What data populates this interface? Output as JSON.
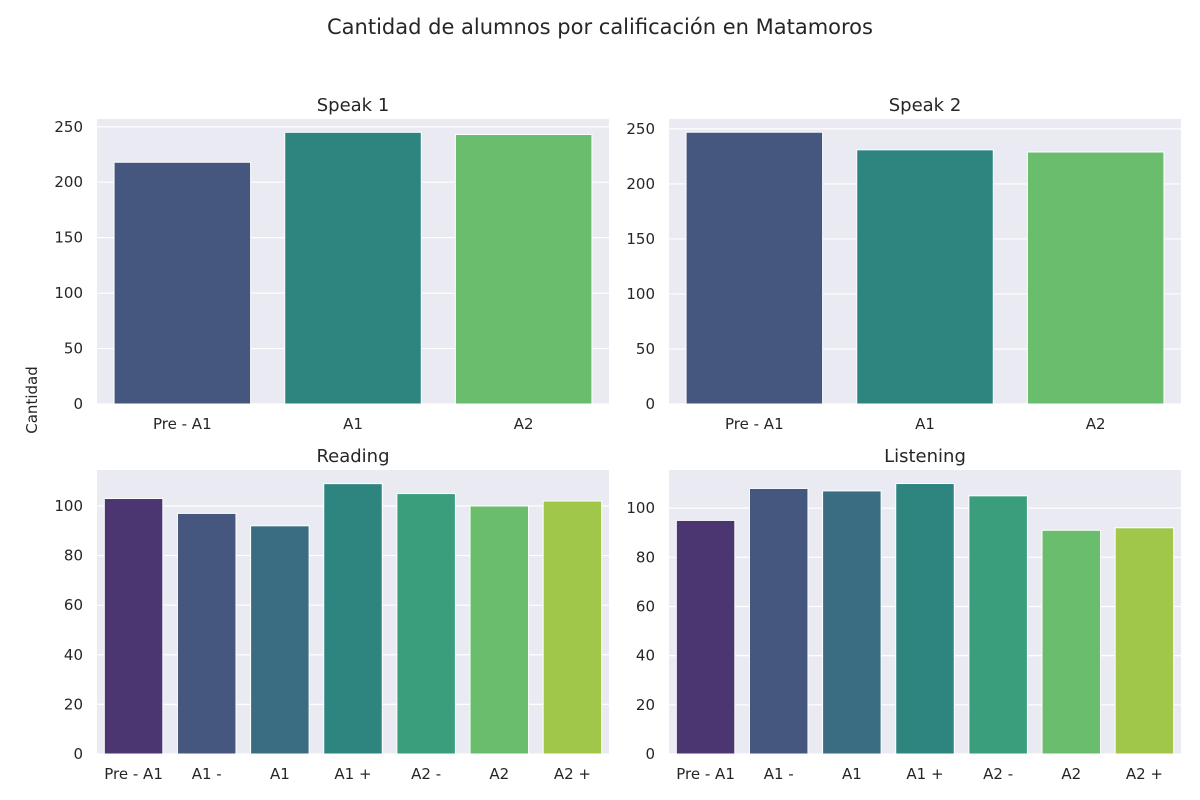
{
  "figure": {
    "title": "Cantidad de alumnos por calificación en Matamoros",
    "ylabel": "Cantidad"
  },
  "chart_data": [
    {
      "type": "bar",
      "title": "Speak 1",
      "categories": [
        "Pre - A1",
        "A1",
        "A2"
      ],
      "values": [
        218,
        245,
        243
      ],
      "colors": [
        "#46577f",
        "#2e8580",
        "#6bbd6e"
      ],
      "ylim": [
        0,
        257
      ],
      "yticks": [
        0,
        50,
        100,
        150,
        200,
        250
      ],
      "grid": true,
      "xlabel": "",
      "ylabel": ""
    },
    {
      "type": "bar",
      "title": "Speak 2",
      "categories": [
        "Pre - A1",
        "A1",
        "A2"
      ],
      "values": [
        247,
        231,
        229
      ],
      "colors": [
        "#46577f",
        "#2e8580",
        "#6bbd6e"
      ],
      "ylim": [
        0,
        259
      ],
      "yticks": [
        0,
        50,
        100,
        150,
        200,
        250
      ],
      "grid": true,
      "xlabel": "",
      "ylabel": ""
    },
    {
      "type": "bar",
      "title": "Reading",
      "categories": [
        "Pre - A1",
        "A1 -",
        "A1",
        "A1 +",
        "A2 -",
        "A2",
        "A2 +"
      ],
      "values": [
        103,
        97,
        92,
        109,
        105,
        100,
        102
      ],
      "colors": [
        "#4b3671",
        "#46577f",
        "#3a6d81",
        "#2e8580",
        "#3a9e7d",
        "#6bbd6e",
        "#a0c64a"
      ],
      "ylim": [
        0,
        114.5
      ],
      "yticks": [
        0,
        20,
        40,
        60,
        80,
        100
      ],
      "grid": true,
      "xlabel": "",
      "ylabel": ""
    },
    {
      "type": "bar",
      "title": "Listening",
      "categories": [
        "Pre - A1",
        "A1 -",
        "A1",
        "A1 +",
        "A2 -",
        "A2",
        "A2 +"
      ],
      "values": [
        95,
        108,
        107,
        110,
        105,
        91,
        92
      ],
      "colors": [
        "#4b3671",
        "#46577f",
        "#3a6d81",
        "#2e8580",
        "#3a9e7d",
        "#6bbd6e",
        "#a0c64a"
      ],
      "ylim": [
        0,
        115.5
      ],
      "yticks": [
        0,
        20,
        40,
        60,
        80,
        100
      ],
      "grid": true,
      "xlabel": "",
      "ylabel": ""
    }
  ]
}
